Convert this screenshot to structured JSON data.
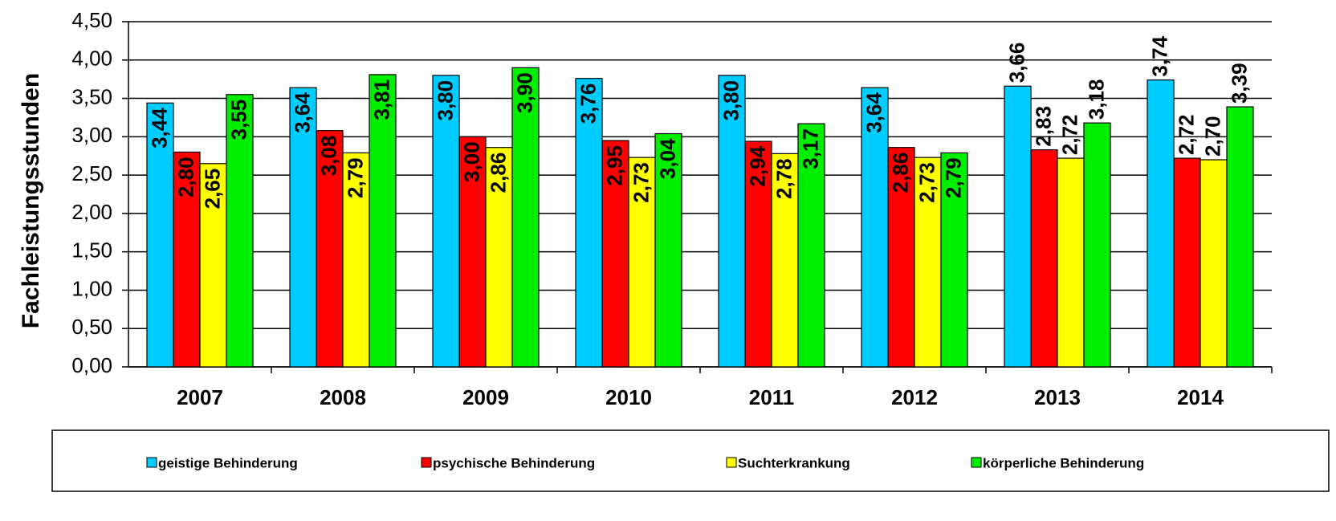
{
  "chart_data": {
    "type": "bar",
    "y_label": "Fachleistungsstunden",
    "categories": [
      "2007",
      "2008",
      "2009",
      "2010",
      "2011",
      "2012",
      "2013",
      "2014"
    ],
    "series": [
      {
        "name": "geistige Behinderung",
        "color": "#00ccff",
        "values": [
          3.44,
          3.64,
          3.8,
          3.76,
          3.8,
          3.64,
          3.66,
          3.74
        ],
        "value_labels": [
          "3,44",
          "3,64",
          "3,80",
          "3,76",
          "3,80",
          "3,64",
          "3,66",
          "3,74"
        ]
      },
      {
        "name": "psychische Behinderung",
        "color": "#ff0000",
        "values": [
          2.8,
          3.08,
          3.0,
          2.95,
          2.94,
          2.86,
          2.83,
          2.72
        ],
        "value_labels": [
          "2,80",
          "3,08",
          "3,00",
          "2,95",
          "2,94",
          "2,86",
          "2,83",
          "2,72"
        ]
      },
      {
        "name": "Suchterkrankung",
        "color": "#ffff00",
        "values": [
          2.65,
          2.79,
          2.86,
          2.73,
          2.78,
          2.73,
          2.72,
          2.7
        ],
        "value_labels": [
          "2,65",
          "2,79",
          "2,86",
          "2,73",
          "2,78",
          "2,73",
          "2,72",
          "2,70"
        ]
      },
      {
        "name": "körperliche Behinderung",
        "color": "#00ee00",
        "values": [
          3.55,
          3.81,
          3.9,
          3.04,
          3.17,
          2.79,
          3.18,
          3.39
        ],
        "value_labels": [
          "3,55",
          "3,81",
          "3,90",
          "3,04",
          "3,17",
          "2,79",
          "3,18",
          "3,39"
        ]
      }
    ],
    "ylim": [
      0,
      4.5
    ],
    "yticks": [
      {
        "value": 0,
        "label": "0,00"
      },
      {
        "value": 0.5,
        "label": "0,50"
      },
      {
        "value": 1,
        "label": "1,00"
      },
      {
        "value": 1.5,
        "label": "1,50"
      },
      {
        "value": 2,
        "label": "2,00"
      },
      {
        "value": 2.5,
        "label": "2,50"
      },
      {
        "value": 3,
        "label": "3,00"
      },
      {
        "value": 3.5,
        "label": "3,50"
      },
      {
        "value": 4,
        "label": "4,00"
      },
      {
        "value": 4.5,
        "label": "4,50"
      }
    ],
    "grid": true,
    "legend": "bottom"
  }
}
